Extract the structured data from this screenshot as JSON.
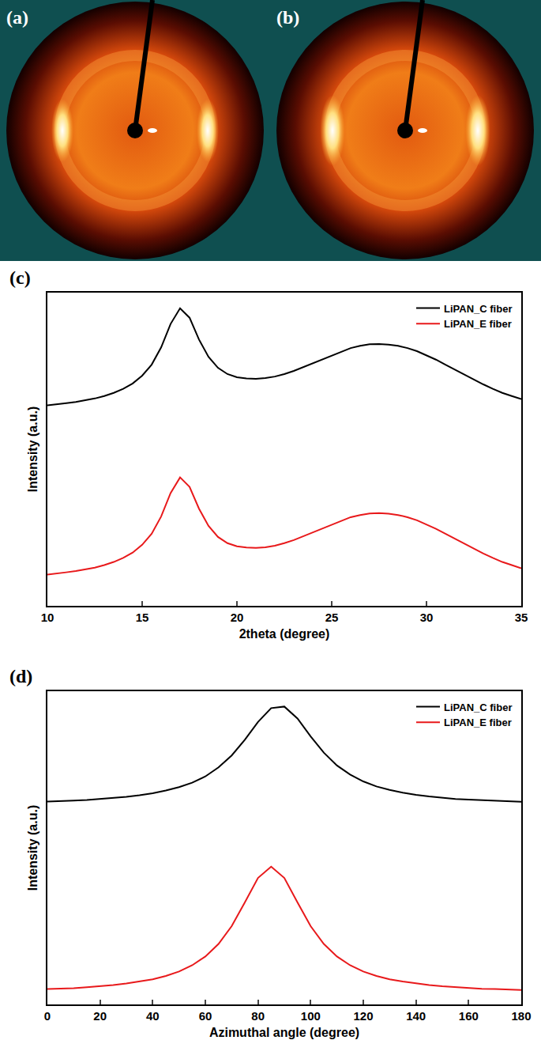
{
  "images": [
    {
      "panel_label": "(a)"
    },
    {
      "panel_label": "(b)"
    }
  ],
  "chart_data": [
    {
      "type": "line",
      "panel_label": "(c)",
      "x_label": "2theta (degree)",
      "y_label": "Intensity (a.u.)",
      "xlim": [
        10,
        35
      ],
      "xticks": [
        10,
        15,
        20,
        25,
        30,
        35
      ],
      "ylim": [
        0,
        100
      ],
      "tick_labels": "x",
      "legend": "upper right",
      "x": [
        10,
        10.5,
        11,
        11.5,
        12,
        12.5,
        13,
        13.5,
        14,
        14.5,
        15,
        15.5,
        16,
        16.5,
        17,
        17.5,
        18,
        18.5,
        19,
        19.5,
        20,
        20.5,
        21,
        21.5,
        22,
        22.5,
        23,
        23.5,
        24,
        24.5,
        25,
        25.5,
        26,
        26.5,
        27,
        27.5,
        28,
        28.5,
        29,
        29.5,
        30,
        30.5,
        31,
        31.5,
        32,
        32.5,
        33,
        33.5,
        34,
        34.5,
        35
      ],
      "series": [
        {
          "name": "LiPAN_C fiber",
          "color": "#000000",
          "values": [
            64,
            64.3,
            64.7,
            65.1,
            65.6,
            66.2,
            67,
            68,
            69.3,
            71,
            73.5,
            77,
            82.5,
            90,
            95,
            92,
            85,
            79.5,
            76,
            74,
            73,
            72.6,
            72.5,
            72.7,
            73.2,
            74,
            75,
            76.2,
            77.5,
            78.8,
            80,
            81.2,
            82.3,
            83,
            83.5,
            83.6,
            83.4,
            83,
            82.3,
            81.3,
            80,
            78.6,
            77,
            75.4,
            73.8,
            72.2,
            70.7,
            69.3,
            68,
            67,
            66
          ]
        },
        {
          "name": "LiPAN_E fiber",
          "color": "#e8191b",
          "values": [
            10,
            10.3,
            10.7,
            11.1,
            11.6,
            12.2,
            13,
            14,
            15.3,
            17,
            19.5,
            23,
            28.5,
            36,
            41,
            38,
            31,
            25.5,
            22,
            20,
            19,
            18.6,
            18.5,
            18.7,
            19.2,
            20,
            21,
            22.2,
            23.5,
            24.8,
            26,
            27.2,
            28.3,
            29,
            29.5,
            29.6,
            29.4,
            29,
            28.3,
            27.3,
            26,
            24.6,
            23,
            21.4,
            19.8,
            18.2,
            16.7,
            15.3,
            14,
            13,
            12
          ]
        }
      ]
    },
    {
      "type": "line",
      "panel_label": "(d)",
      "x_label": "Azimuthal angle (degree)",
      "y_label": "Intensity (a.u.)",
      "xlim": [
        0,
        180
      ],
      "xticks": [
        0,
        20,
        40,
        60,
        80,
        100,
        120,
        140,
        160,
        180
      ],
      "ylim": [
        0,
        100
      ],
      "tick_labels": "x",
      "legend": "upper right",
      "x": [
        0,
        5,
        10,
        15,
        20,
        25,
        30,
        35,
        40,
        45,
        50,
        55,
        60,
        65,
        70,
        75,
        80,
        85,
        90,
        95,
        100,
        105,
        110,
        115,
        120,
        125,
        130,
        135,
        140,
        145,
        150,
        155,
        160,
        165,
        170,
        175,
        180
      ],
      "series": [
        {
          "name": "LiPAN_C fiber",
          "color": "#000000",
          "values": [
            64.8,
            64.9,
            65.1,
            65.3,
            65.6,
            65.9,
            66.3,
            66.8,
            67.4,
            68.3,
            69.4,
            70.8,
            72.8,
            75.7,
            79.5,
            84.5,
            90.2,
            94.6,
            95.1,
            91.3,
            85.6,
            80.4,
            76.3,
            73.4,
            71.2,
            69.6,
            68.5,
            67.6,
            66.9,
            66.4,
            66.0,
            65.6,
            65.4,
            65.2,
            65.0,
            64.8,
            64.7
          ]
        },
        {
          "name": "LiPAN_E fiber",
          "color": "#e8191b",
          "values": [
            4.9,
            5.0,
            5.2,
            5.5,
            5.8,
            6.2,
            6.7,
            7.3,
            8.0,
            9.1,
            10.5,
            12.5,
            15.3,
            19.3,
            25.0,
            32.6,
            40.4,
            44.0,
            40.4,
            32.6,
            25.0,
            19.3,
            15.3,
            12.5,
            10.5,
            9.1,
            8.0,
            7.3,
            6.7,
            6.2,
            5.8,
            5.5,
            5.2,
            5.0,
            4.9,
            4.7,
            4.6
          ]
        }
      ]
    }
  ]
}
